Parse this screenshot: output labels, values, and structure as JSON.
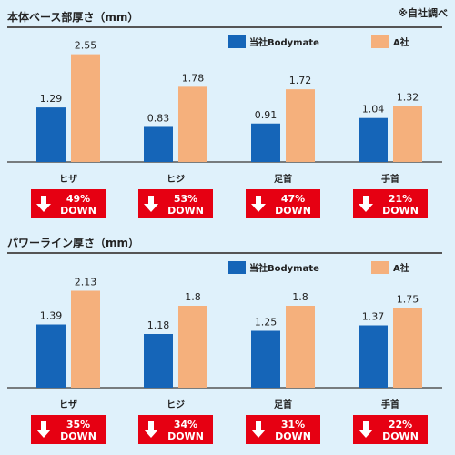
{
  "note": "※自社調べ",
  "colors": {
    "ours": "#1565b8",
    "competitor": "#f5b07c",
    "badge": "#e60012",
    "background": "#dff1fb"
  },
  "legend": {
    "ours": "当社Bodymate",
    "competitor": "A社"
  },
  "chart_data": [
    {
      "type": "bar",
      "title": "本体ベース部厚さ（mm）",
      "categories": [
        "ヒザ",
        "ヒジ",
        "足首",
        "手首"
      ],
      "series": [
        {
          "name": "当社Bodymate",
          "values": [
            1.29,
            0.83,
            0.91,
            1.04
          ]
        },
        {
          "name": "A社",
          "values": [
            2.55,
            1.78,
            1.72,
            1.32
          ]
        }
      ],
      "value_labels": [
        [
          "1.29",
          "0.83",
          "0.91",
          "1.04"
        ],
        [
          "2.55",
          "1.78",
          "1.72",
          "1.32"
        ]
      ],
      "badges": [
        "49%",
        "53%",
        "47%",
        "21%"
      ],
      "badge_suffix": "DOWN",
      "ylim": [
        0,
        2.8
      ]
    },
    {
      "type": "bar",
      "title": "パワーライン厚さ（mm）",
      "categories": [
        "ヒザ",
        "ヒジ",
        "足首",
        "手首"
      ],
      "series": [
        {
          "name": "当社Bodymate",
          "values": [
            1.39,
            1.18,
            1.25,
            1.37
          ]
        },
        {
          "name": "A社",
          "values": [
            2.13,
            1.8,
            1.8,
            1.75
          ]
        }
      ],
      "value_labels": [
        [
          "1.39",
          "1.18",
          "1.25",
          "1.37"
        ],
        [
          "2.13",
          "1.8",
          "1.8",
          "1.75"
        ]
      ],
      "badges": [
        "35%",
        "34%",
        "31%",
        "22%"
      ],
      "badge_suffix": "DOWN",
      "ylim": [
        0,
        2.6
      ]
    }
  ]
}
